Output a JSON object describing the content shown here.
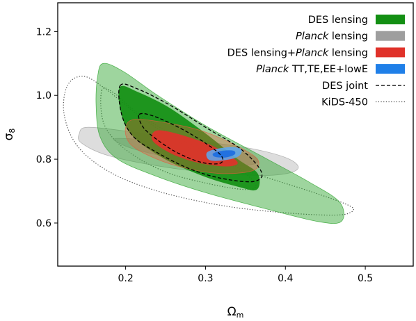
{
  "chart_data": {
    "type": "contour",
    "xlabel": "Ω",
    "xlabel_sub": "m",
    "ylabel": "σ",
    "ylabel_sub": "8",
    "xlim": [
      0.115,
      0.56
    ],
    "ylim": [
      0.465,
      1.29
    ],
    "xticks": [
      {
        "v": 0.2,
        "label": "0.2"
      },
      {
        "v": 0.3,
        "label": "0.3"
      },
      {
        "v": 0.4,
        "label": "0.4"
      },
      {
        "v": 0.5,
        "label": "0.5"
      }
    ],
    "yticks": [
      {
        "v": 0.6,
        "label": "0.6"
      },
      {
        "v": 0.8,
        "label": "0.8"
      },
      {
        "v": 1.0,
        "label": "1.0"
      },
      {
        "v": 1.2,
        "label": "1.2"
      }
    ],
    "legend_position": "top-right",
    "legend": [
      {
        "id": "des-lensing",
        "parts": [
          {
            "t": "DES lensing",
            "i": false
          }
        ],
        "style": "fill",
        "color": "#138f13"
      },
      {
        "id": "planck-lensing",
        "parts": [
          {
            "t": "Planck",
            "i": true
          },
          {
            "t": " lensing",
            "i": false
          }
        ],
        "style": "fill",
        "color": "#9e9e9e"
      },
      {
        "id": "combined",
        "parts": [
          {
            "t": "DES lensing+",
            "i": false
          },
          {
            "t": "Planck",
            "i": true
          },
          {
            "t": " lensing",
            "i": false
          }
        ],
        "style": "fill",
        "color": "#e0322a"
      },
      {
        "id": "planck-cmb",
        "parts": [
          {
            "t": "Planck",
            "i": true
          },
          {
            "t": " TT,TE,EE+lowE",
            "i": false
          }
        ],
        "style": "fill",
        "color": "#1f7fe8"
      },
      {
        "id": "des-joint",
        "parts": [
          {
            "t": "DES joint",
            "i": false
          }
        ],
        "style": "dashed",
        "color": "#000000"
      },
      {
        "id": "kids-450",
        "parts": [
          {
            "t": "KiDS-450",
            "i": false
          }
        ],
        "style": "dotted",
        "color": "#555555"
      }
    ],
    "contours": [
      {
        "id": "kids-450-outer",
        "style": "dotted",
        "color": "#555555",
        "points": [
          [
            0.127,
            1.03
          ],
          [
            0.147,
            1.06
          ],
          [
            0.175,
            1.02
          ],
          [
            0.22,
            0.93
          ],
          [
            0.28,
            0.835
          ],
          [
            0.35,
            0.765
          ],
          [
            0.43,
            0.7
          ],
          [
            0.475,
            0.66
          ],
          [
            0.485,
            0.64
          ],
          [
            0.465,
            0.625
          ],
          [
            0.4,
            0.632
          ],
          [
            0.32,
            0.655
          ],
          [
            0.24,
            0.7
          ],
          [
            0.18,
            0.76
          ],
          [
            0.14,
            0.84
          ],
          [
            0.123,
            0.94
          ]
        ]
      },
      {
        "id": "kids-450-inner",
        "style": "dotted",
        "color": "#555555",
        "points": [
          [
            0.17,
            1.015
          ],
          [
            0.185,
            1.008
          ],
          [
            0.215,
            0.945
          ],
          [
            0.27,
            0.86
          ],
          [
            0.33,
            0.79
          ],
          [
            0.362,
            0.725
          ],
          [
            0.352,
            0.705
          ],
          [
            0.31,
            0.72
          ],
          [
            0.25,
            0.76
          ],
          [
            0.2,
            0.83
          ],
          [
            0.173,
            0.91
          ]
        ]
      },
      {
        "id": "planck-lensing-outer",
        "style": "fill",
        "color": "#9e9e9e",
        "opacity": 0.35,
        "points": [
          [
            0.142,
            0.88
          ],
          [
            0.153,
            0.9
          ],
          [
            0.21,
            0.885
          ],
          [
            0.29,
            0.858
          ],
          [
            0.36,
            0.832
          ],
          [
            0.405,
            0.8
          ],
          [
            0.415,
            0.768
          ],
          [
            0.385,
            0.75
          ],
          [
            0.32,
            0.755
          ],
          [
            0.25,
            0.775
          ],
          [
            0.18,
            0.81
          ],
          [
            0.145,
            0.85
          ]
        ]
      },
      {
        "id": "planck-lensing-inner",
        "style": "fill",
        "color": "#9e9e9e",
        "opacity": 0.42,
        "points": [
          [
            0.19,
            0.865
          ],
          [
            0.25,
            0.855
          ],
          [
            0.31,
            0.835
          ],
          [
            0.355,
            0.815
          ],
          [
            0.365,
            0.79
          ],
          [
            0.34,
            0.78
          ],
          [
            0.28,
            0.795
          ],
          [
            0.22,
            0.825
          ],
          [
            0.192,
            0.85
          ]
        ]
      },
      {
        "id": "des-lensing-outer",
        "style": "fill",
        "color": "#27a127",
        "opacity": 0.45,
        "points": [
          [
            0.172,
            1.1
          ],
          [
            0.197,
            1.075
          ],
          [
            0.24,
            1.0
          ],
          [
            0.3,
            0.905
          ],
          [
            0.37,
            0.81
          ],
          [
            0.43,
            0.728
          ],
          [
            0.468,
            0.665
          ],
          [
            0.47,
            0.605
          ],
          [
            0.44,
            0.605
          ],
          [
            0.37,
            0.648
          ],
          [
            0.3,
            0.695
          ],
          [
            0.24,
            0.745
          ],
          [
            0.19,
            0.8
          ],
          [
            0.168,
            0.87
          ],
          [
            0.163,
            0.97
          ],
          [
            0.165,
            1.06
          ]
        ]
      },
      {
        "id": "des-lensing-inner",
        "style": "fill",
        "color": "#138f13",
        "opacity": 0.92,
        "points": [
          [
            0.193,
            1.025
          ],
          [
            0.215,
            1.01
          ],
          [
            0.255,
            0.96
          ],
          [
            0.3,
            0.88
          ],
          [
            0.34,
            0.8
          ],
          [
            0.365,
            0.755
          ],
          [
            0.364,
            0.705
          ],
          [
            0.34,
            0.715
          ],
          [
            0.3,
            0.745
          ],
          [
            0.25,
            0.8
          ],
          [
            0.21,
            0.87
          ],
          [
            0.195,
            0.94
          ]
        ]
      },
      {
        "id": "combined-outer",
        "style": "fill",
        "color": "#e8593a",
        "opacity": 0.35,
        "points": [
          [
            0.213,
            0.925
          ],
          [
            0.26,
            0.91
          ],
          [
            0.3,
            0.885
          ],
          [
            0.34,
            0.84
          ],
          [
            0.365,
            0.8
          ],
          [
            0.36,
            0.765
          ],
          [
            0.32,
            0.755
          ],
          [
            0.27,
            0.775
          ],
          [
            0.23,
            0.81
          ],
          [
            0.205,
            0.85
          ],
          [
            0.2,
            0.9
          ]
        ]
      },
      {
        "id": "combined-inner",
        "style": "fill",
        "color": "#e0322a",
        "opacity": 0.92,
        "points": [
          [
            0.242,
            0.89
          ],
          [
            0.27,
            0.875
          ],
          [
            0.305,
            0.845
          ],
          [
            0.33,
            0.81
          ],
          [
            0.34,
            0.787
          ],
          [
            0.325,
            0.778
          ],
          [
            0.29,
            0.79
          ],
          [
            0.26,
            0.815
          ],
          [
            0.237,
            0.85
          ],
          [
            0.233,
            0.875
          ]
        ]
      },
      {
        "id": "planck-cmb-outer",
        "style": "fill",
        "color": "#5aa9f2",
        "opacity": 0.85,
        "points": [
          [
            0.302,
            0.82
          ],
          [
            0.315,
            0.832
          ],
          [
            0.335,
            0.837
          ],
          [
            0.345,
            0.828
          ],
          [
            0.34,
            0.808
          ],
          [
            0.322,
            0.797
          ],
          [
            0.305,
            0.798
          ]
        ]
      },
      {
        "id": "planck-cmb-inner",
        "style": "fill",
        "color": "#1f6fe0",
        "opacity": 0.95,
        "points": [
          [
            0.31,
            0.818
          ],
          [
            0.322,
            0.826
          ],
          [
            0.335,
            0.826
          ],
          [
            0.336,
            0.815
          ],
          [
            0.325,
            0.806
          ],
          [
            0.312,
            0.808
          ]
        ]
      },
      {
        "id": "des-joint-outer",
        "style": "dashed",
        "color": "#000000",
        "points": [
          [
            0.193,
            1.03
          ],
          [
            0.215,
            1.02
          ],
          [
            0.255,
            0.97
          ],
          [
            0.3,
            0.9
          ],
          [
            0.345,
            0.83
          ],
          [
            0.37,
            0.76
          ],
          [
            0.36,
            0.73
          ],
          [
            0.32,
            0.74
          ],
          [
            0.28,
            0.77
          ],
          [
            0.24,
            0.82
          ],
          [
            0.21,
            0.87
          ],
          [
            0.195,
            0.94
          ]
        ]
      },
      {
        "id": "des-joint-inner",
        "style": "dashed",
        "color": "#000000",
        "points": [
          [
            0.217,
            0.94
          ],
          [
            0.235,
            0.935
          ],
          [
            0.27,
            0.895
          ],
          [
            0.3,
            0.85
          ],
          [
            0.32,
            0.81
          ],
          [
            0.318,
            0.787
          ],
          [
            0.295,
            0.79
          ],
          [
            0.265,
            0.82
          ],
          [
            0.24,
            0.86
          ],
          [
            0.222,
            0.9
          ]
        ]
      }
    ]
  }
}
